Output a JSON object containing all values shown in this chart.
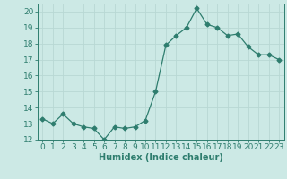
{
  "x": [
    0,
    1,
    2,
    3,
    4,
    5,
    6,
    7,
    8,
    9,
    10,
    11,
    12,
    13,
    14,
    15,
    16,
    17,
    18,
    19,
    20,
    21,
    22,
    23
  ],
  "y": [
    13.3,
    13.0,
    13.6,
    13.0,
    12.8,
    12.7,
    12.0,
    12.8,
    12.7,
    12.8,
    13.2,
    15.0,
    17.9,
    18.5,
    19.0,
    20.2,
    19.2,
    19.0,
    18.5,
    18.6,
    17.8,
    17.3,
    17.3,
    17.0
  ],
  "line_color": "#2e7d6e",
  "marker": "D",
  "marker_size": 2.5,
  "bg_color": "#cce9e5",
  "grid_color": "#b8d8d4",
  "xlabel": "Humidex (Indice chaleur)",
  "ylim": [
    12,
    20.5
  ],
  "yticks": [
    12,
    13,
    14,
    15,
    16,
    17,
    18,
    19,
    20
  ],
  "xticks": [
    0,
    1,
    2,
    3,
    4,
    5,
    6,
    7,
    8,
    9,
    10,
    11,
    12,
    13,
    14,
    15,
    16,
    17,
    18,
    19,
    20,
    21,
    22,
    23
  ],
  "tick_color": "#2e7d6e",
  "axis_color": "#2e7d6e",
  "font_color": "#2e7d6e",
  "xlabel_fontsize": 7,
  "tick_fontsize": 6.5
}
